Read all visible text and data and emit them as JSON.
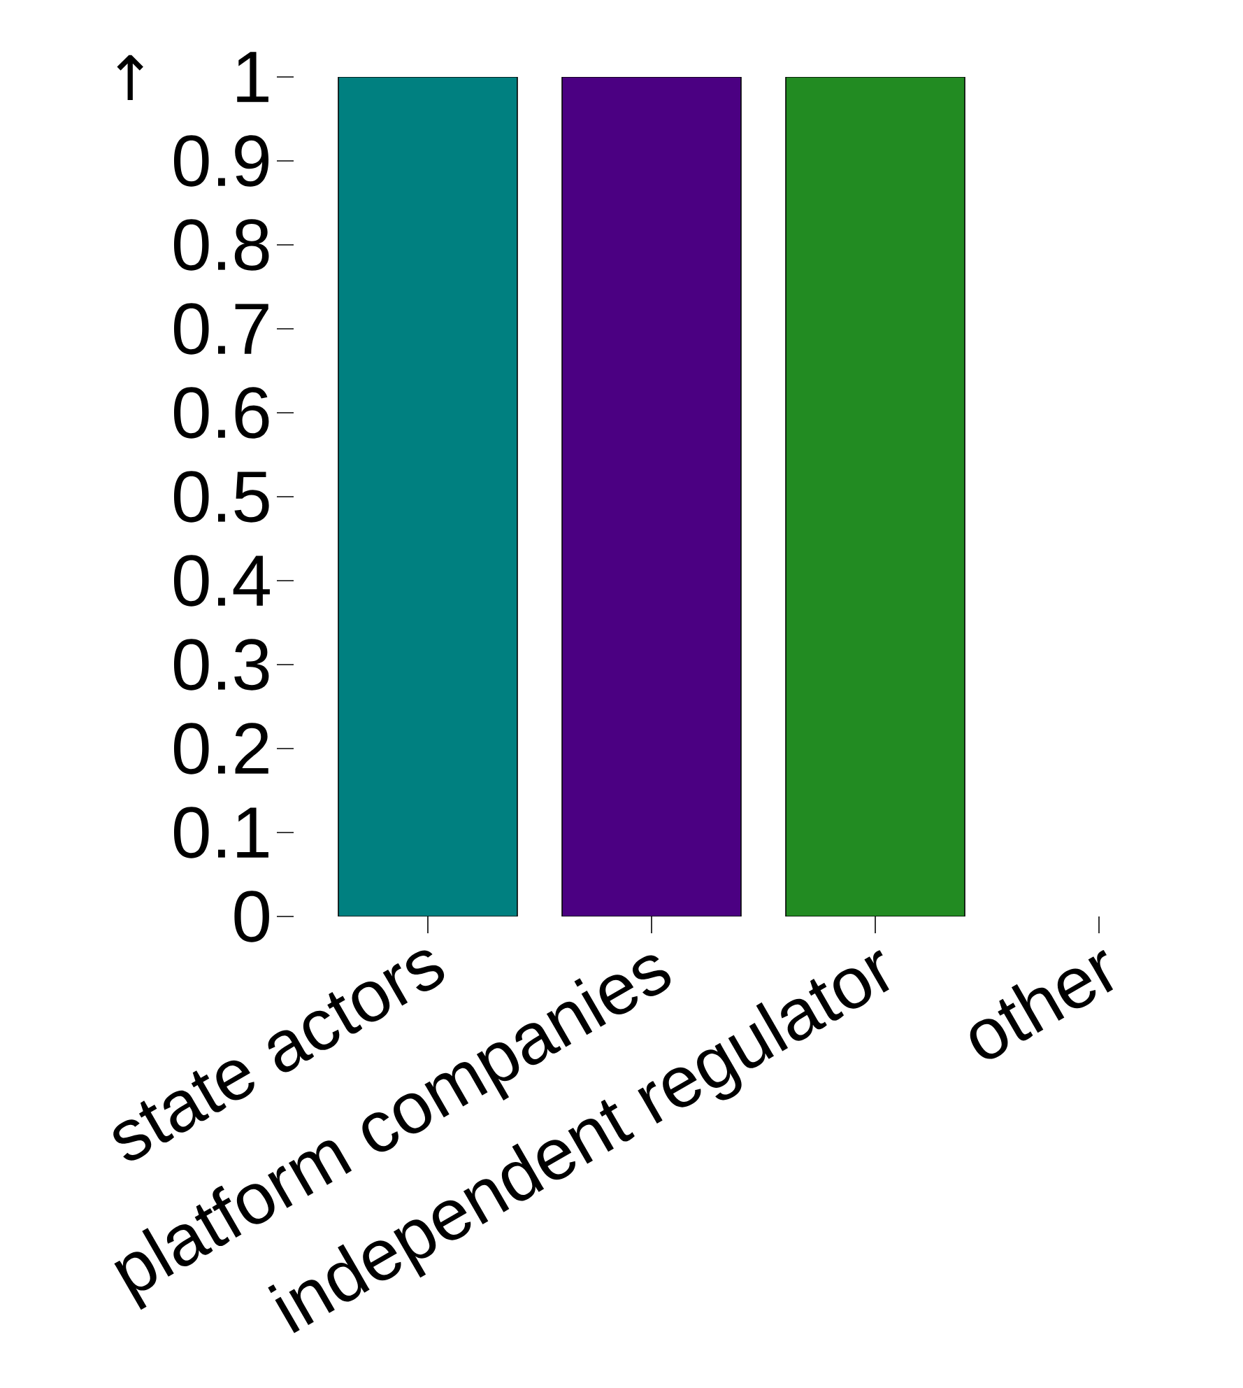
{
  "chart_data": {
    "type": "bar",
    "ylabel": "↑",
    "categories": [
      "state actors",
      "platform companies",
      "independent regulator",
      "other"
    ],
    "values": [
      1,
      1,
      1,
      0
    ],
    "colors": [
      "#008080",
      "#4b0082",
      "#228b22",
      null
    ],
    "ylim": [
      0,
      1
    ],
    "yticks": [
      0,
      0.1,
      0.2,
      0.3,
      0.4,
      0.5,
      0.6,
      0.7,
      0.8,
      0.9,
      1
    ]
  }
}
